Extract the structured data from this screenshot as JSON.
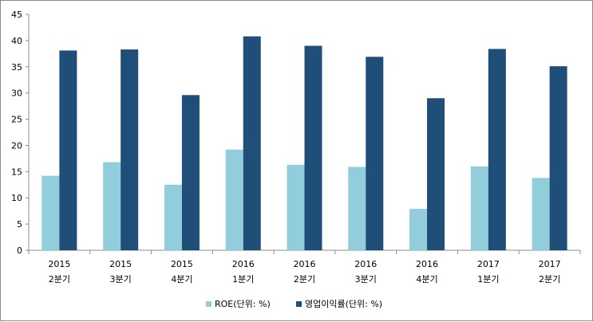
{
  "chart_data": {
    "type": "bar",
    "categories": [
      [
        "2015",
        "2분기"
      ],
      [
        "2015",
        "3분기"
      ],
      [
        "2015",
        "4분기"
      ],
      [
        "2016",
        "1분기"
      ],
      [
        "2016",
        "2분기"
      ],
      [
        "2016",
        "3분기"
      ],
      [
        "2016",
        "4분기"
      ],
      [
        "2017",
        "1분기"
      ],
      [
        "2017",
        "2분기"
      ]
    ],
    "series": [
      {
        "name": "ROE(단위: %)",
        "color": "#92cddc",
        "values": [
          14.2,
          16.8,
          12.5,
          19.2,
          16.3,
          15.9,
          7.9,
          16.0,
          13.8
        ]
      },
      {
        "name": "영업이익률(단위: %)",
        "color": "#1f4e79",
        "values": [
          38.1,
          38.3,
          29.6,
          40.8,
          39.0,
          36.9,
          29.0,
          38.4,
          35.1
        ]
      }
    ],
    "ylim": [
      0,
      45
    ],
    "yticks": [
      0,
      5,
      10,
      15,
      20,
      25,
      30,
      35,
      40,
      45
    ],
    "grid": false,
    "legend": "bottom-center"
  }
}
